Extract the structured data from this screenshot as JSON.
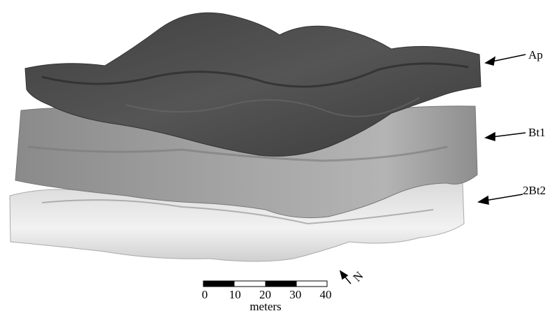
{
  "layers": [
    {
      "label": "Ap"
    },
    {
      "label": "Bt1"
    },
    {
      "label": "2Bt2"
    }
  ],
  "scale_bar": {
    "ticks": [
      0,
      10,
      20,
      30,
      40
    ],
    "unit": "meters"
  },
  "north_arrow": {
    "label": "N"
  }
}
